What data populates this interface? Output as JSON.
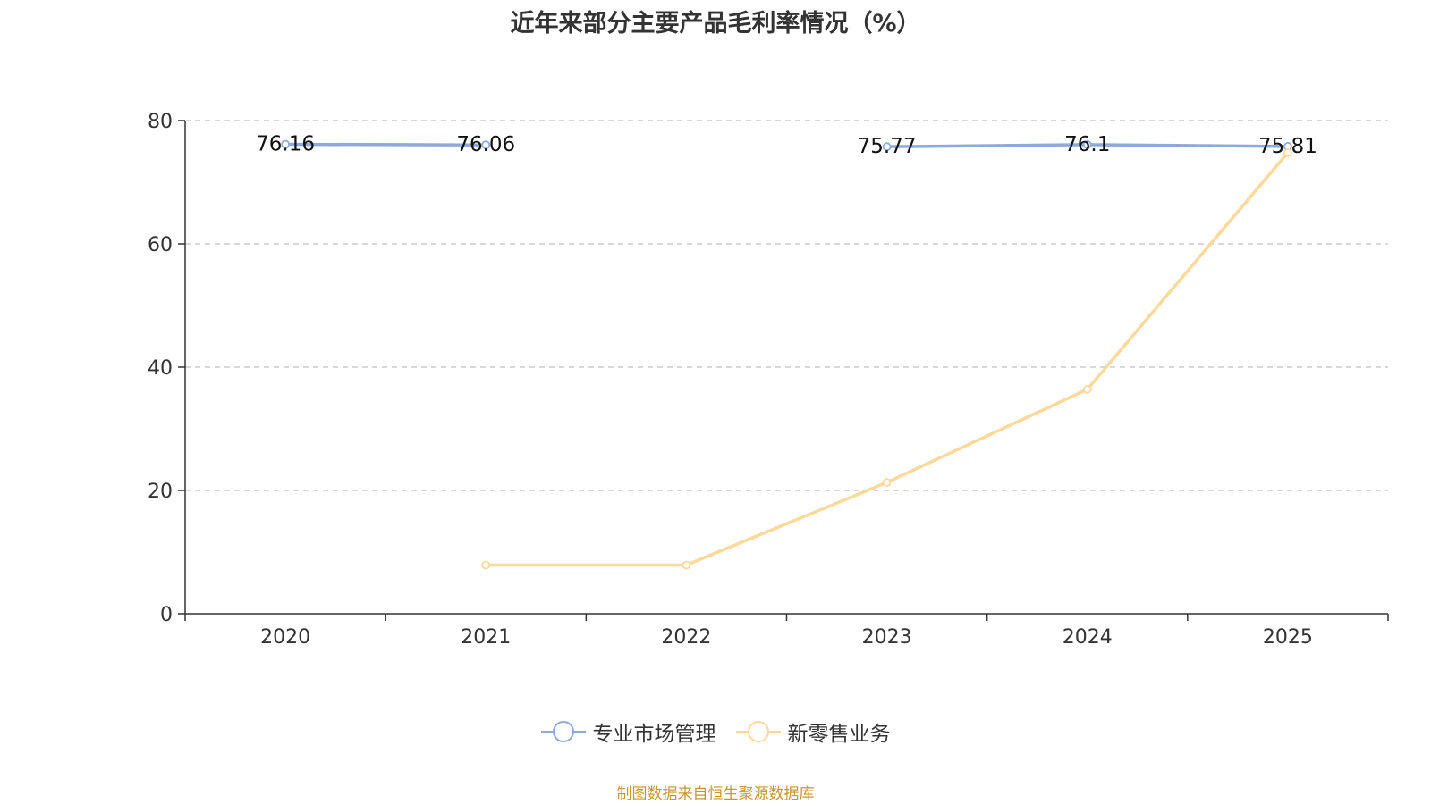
{
  "chart_data": {
    "type": "line",
    "title": "近年来部分主要产品毛利率情况（%）",
    "categories": [
      "2020",
      "2021",
      "2022",
      "2023",
      "2024",
      "2025"
    ],
    "ylim": [
      0,
      80
    ],
    "yticks": [
      0,
      20,
      40,
      60,
      80
    ],
    "grid": true,
    "legend_position": "bottom",
    "series": [
      {
        "name": "专业市场管理",
        "color": "#8eaadb",
        "values": [
          76.16,
          76.06,
          null,
          75.77,
          76.1,
          75.81
        ],
        "labels": [
          "76.16",
          "76.06",
          "",
          "75.77",
          "76.1",
          "75.81"
        ]
      },
      {
        "name": "新零售业务",
        "color": "#fcd899",
        "values": [
          null,
          7.9,
          7.9,
          21.3,
          36.4,
          74.8
        ],
        "labels": [
          "",
          "",
          "",
          "",
          "",
          ""
        ]
      }
    ]
  },
  "source": "制图数据来自恒生聚源数据库"
}
